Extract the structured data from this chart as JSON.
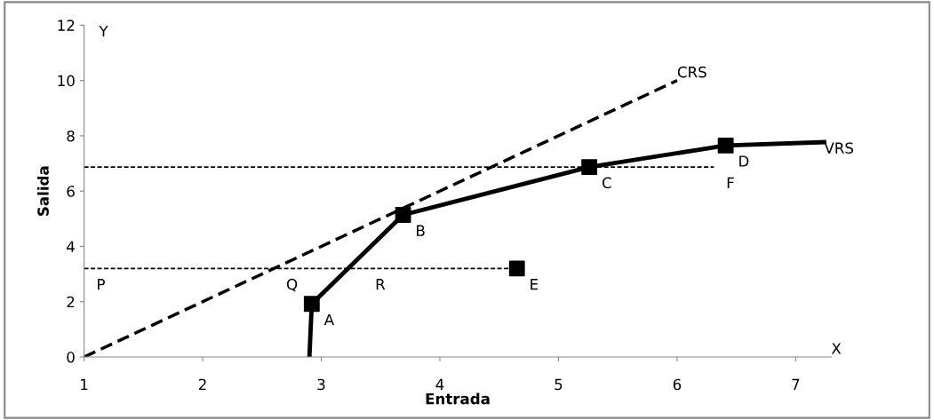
{
  "chart_data": {
    "type": "line",
    "xlabel": "Entrada",
    "ylabel": "Salida",
    "xlim": [
      1,
      7.3
    ],
    "ylim": [
      0,
      12
    ],
    "xticks": [
      1,
      2,
      3,
      4,
      5,
      6,
      7
    ],
    "yticks": [
      0,
      2,
      4,
      6,
      8,
      10,
      12
    ],
    "grid": false,
    "legend": false,
    "series": [
      {
        "name": "CRS",
        "type": "line",
        "color": "#000000",
        "line_style": "dashed",
        "x": [
          1,
          6.0
        ],
        "values": [
          0,
          10.0
        ]
      },
      {
        "name": "VRS",
        "type": "line",
        "color": "#000000",
        "line_style": "solid",
        "x": [
          2.9,
          2.92,
          3.69,
          5.26,
          6.41,
          7.24
        ],
        "values": [
          0,
          1.92,
          5.14,
          6.87,
          7.65,
          7.77
        ]
      },
      {
        "color": "#000000",
        "line_style": "dotted",
        "x": [
          1,
          4.6
        ],
        "values": [
          3.2,
          3.2
        ]
      },
      {
        "color": "#000000",
        "line_style": "dotted",
        "x": [
          1,
          6.31
        ],
        "values": [
          6.87,
          6.87
        ]
      },
      {
        "type": "scatter",
        "color": "#000000",
        "marker": "square",
        "x": [
          2.92,
          3.69,
          5.26,
          6.41,
          4.65
        ],
        "values": [
          1.92,
          5.14,
          6.87,
          7.65,
          3.2
        ]
      }
    ],
    "annotations": [
      {
        "text": "A",
        "x": 2.92,
        "y": 1.92
      },
      {
        "text": "B",
        "x": 3.69,
        "y": 5.14
      },
      {
        "text": "C",
        "x": 5.26,
        "y": 6.87
      },
      {
        "text": "D",
        "x": 6.41,
        "y": 7.65
      },
      {
        "text": "E",
        "x": 4.65,
        "y": 3.2
      },
      {
        "text": "F",
        "x": 6.31,
        "y": 6.87
      },
      {
        "text": "P",
        "x": 1,
        "y": 3.2
      },
      {
        "text": "Q",
        "x": 2.6,
        "y": 3.2
      },
      {
        "text": "R",
        "x": 3.35,
        "y": 3.2
      },
      "Y",
      "X"
    ]
  }
}
